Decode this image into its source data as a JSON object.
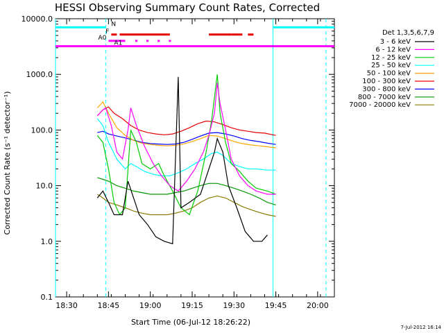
{
  "chart_data": {
    "type": "line",
    "title": "HESSI Observing Summary Count Rates, Corrected",
    "xlabel": "Start Time (06-Jul-12 18:26:22)",
    "ylabel": "Corrected Count Rate (s⁻¹ detector⁻¹)",
    "footer": "7-Jul-2012 16:14",
    "y_scale": "log",
    "ylim": [
      0.1,
      10000.0
    ],
    "xlim": [
      "18:26",
      "20:06"
    ],
    "x_ticks": [
      "18:30",
      "18:45",
      "19:00",
      "19:15",
      "19:30",
      "19:45",
      "20:00"
    ],
    "y_ticks": [
      "0.1",
      "1.0",
      "10.0",
      "100.0",
      "1000.0",
      "10000.0"
    ],
    "legend_title": "Det 1,3,5,6,7,9",
    "grid": false,
    "legend_placement": "right",
    "series": [
      {
        "name": "3 - 6 keV",
        "color": "#000000",
        "points": [
          [
            "18:41",
            6
          ],
          [
            "18:43",
            8
          ],
          [
            "18:45",
            5
          ],
          [
            "18:47",
            3
          ],
          [
            "18:50",
            3
          ],
          [
            "18:52",
            12
          ],
          [
            "18:54",
            6
          ],
          [
            "18:56",
            3
          ],
          [
            "18:59",
            2
          ],
          [
            "19:02",
            1.2
          ],
          [
            "19:05",
            1.0
          ],
          [
            "19:08",
            0.9
          ],
          [
            "19:10",
            900
          ],
          [
            "19:11",
            4
          ],
          [
            "19:14",
            5
          ],
          [
            "19:18",
            7
          ],
          [
            "19:21",
            20
          ],
          [
            "19:23",
            40
          ],
          [
            "19:24",
            70
          ],
          [
            "19:26",
            40
          ],
          [
            "19:28",
            10
          ],
          [
            "19:31",
            4
          ],
          [
            "19:34",
            1.5
          ],
          [
            "19:37",
            1.0
          ],
          [
            "19:40",
            1.0
          ],
          [
            "19:42",
            1.3
          ]
        ]
      },
      {
        "name": "6 - 12 keV",
        "color": "#ff00ff",
        "points": [
          [
            "18:41",
            180
          ],
          [
            "18:43",
            230
          ],
          [
            "18:44",
            250
          ],
          [
            "18:46",
            120
          ],
          [
            "18:48",
            40
          ],
          [
            "18:50",
            30
          ],
          [
            "18:52",
            100
          ],
          [
            "18:53",
            250
          ],
          [
            "18:55",
            120
          ],
          [
            "18:58",
            50
          ],
          [
            "19:01",
            25
          ],
          [
            "19:04",
            15
          ],
          [
            "19:07",
            10
          ],
          [
            "19:10",
            8
          ],
          [
            "19:13",
            12
          ],
          [
            "19:16",
            20
          ],
          [
            "19:19",
            40
          ],
          [
            "19:21",
            80
          ],
          [
            "19:23",
            200
          ],
          [
            "19:24",
            700
          ],
          [
            "19:25",
            300
          ],
          [
            "19:27",
            100
          ],
          [
            "19:29",
            30
          ],
          [
            "19:32",
            15
          ],
          [
            "19:35",
            10
          ],
          [
            "19:38",
            8
          ],
          [
            "19:42",
            7
          ],
          [
            "19:45",
            7
          ]
        ]
      },
      {
        "name": "12 - 25 keV",
        "color": "#00cc00",
        "points": [
          [
            "18:41",
            80
          ],
          [
            "18:43",
            60
          ],
          [
            "18:45",
            20
          ],
          [
            "18:47",
            5
          ],
          [
            "18:49",
            3
          ],
          [
            "18:51",
            4
          ],
          [
            "18:53",
            100
          ],
          [
            "18:55",
            60
          ],
          [
            "18:57",
            25
          ],
          [
            "19:00",
            20
          ],
          [
            "19:03",
            25
          ],
          [
            "19:05",
            15
          ],
          [
            "19:08",
            8
          ],
          [
            "19:11",
            4
          ],
          [
            "19:14",
            3
          ],
          [
            "19:17",
            8
          ],
          [
            "19:20",
            40
          ],
          [
            "19:22",
            150
          ],
          [
            "19:24",
            1000
          ],
          [
            "19:25",
            200
          ],
          [
            "19:27",
            60
          ],
          [
            "19:29",
            25
          ],
          [
            "19:32",
            18
          ],
          [
            "19:35",
            12
          ],
          [
            "19:38",
            9
          ],
          [
            "19:42",
            8
          ],
          [
            "19:45",
            7
          ]
        ]
      },
      {
        "name": "25 - 50 keV",
        "color": "#00ffff",
        "points": [
          [
            "18:41",
            160
          ],
          [
            "18:43",
            120
          ],
          [
            "18:45",
            60
          ],
          [
            "18:48",
            30
          ],
          [
            "18:51",
            20
          ],
          [
            "18:53",
            25
          ],
          [
            "18:55",
            22
          ],
          [
            "18:58",
            18
          ],
          [
            "19:01",
            16
          ],
          [
            "19:04",
            15
          ],
          [
            "19:07",
            15
          ],
          [
            "19:10",
            17
          ],
          [
            "19:13",
            20
          ],
          [
            "19:16",
            25
          ],
          [
            "19:19",
            30
          ],
          [
            "19:22",
            38
          ],
          [
            "19:24",
            40
          ],
          [
            "19:26",
            35
          ],
          [
            "19:29",
            25
          ],
          [
            "19:32",
            22
          ],
          [
            "19:35",
            20
          ],
          [
            "19:38",
            20
          ],
          [
            "19:42",
            19
          ],
          [
            "19:45",
            19
          ]
        ]
      },
      {
        "name": "50 - 100 keV",
        "color": "#ffa500",
        "points": [
          [
            "18:41",
            250
          ],
          [
            "18:43",
            320
          ],
          [
            "18:45",
            200
          ],
          [
            "18:48",
            110
          ],
          [
            "18:51",
            80
          ],
          [
            "18:54",
            65
          ],
          [
            "18:57",
            58
          ],
          [
            "19:00",
            55
          ],
          [
            "19:03",
            53
          ],
          [
            "19:06",
            52
          ],
          [
            "19:09",
            53
          ],
          [
            "19:12",
            56
          ],
          [
            "19:15",
            62
          ],
          [
            "19:18",
            70
          ],
          [
            "19:21",
            80
          ],
          [
            "19:24",
            78
          ],
          [
            "19:27",
            70
          ],
          [
            "19:30",
            62
          ],
          [
            "19:33",
            57
          ],
          [
            "19:36",
            54
          ],
          [
            "19:39",
            52
          ],
          [
            "19:42",
            50
          ],
          [
            "19:45",
            48
          ]
        ]
      },
      {
        "name": "100 - 300 keV",
        "color": "#e80000",
        "points": [
          [
            "18:41",
            180
          ],
          [
            "18:43",
            230
          ],
          [
            "18:45",
            260
          ],
          [
            "18:47",
            200
          ],
          [
            "18:50",
            160
          ],
          [
            "18:53",
            120
          ],
          [
            "18:56",
            100
          ],
          [
            "18:59",
            90
          ],
          [
            "19:02",
            85
          ],
          [
            "19:05",
            82
          ],
          [
            "19:08",
            85
          ],
          [
            "19:11",
            95
          ],
          [
            "19:14",
            110
          ],
          [
            "19:17",
            130
          ],
          [
            "19:20",
            145
          ],
          [
            "19:23",
            140
          ],
          [
            "19:26",
            125
          ],
          [
            "19:29",
            110
          ],
          [
            "19:32",
            100
          ],
          [
            "19:35",
            95
          ],
          [
            "19:38",
            90
          ],
          [
            "19:41",
            88
          ],
          [
            "19:45",
            80
          ]
        ]
      },
      {
        "name": "300 - 800 keV",
        "color": "#0000ff",
        "points": [
          [
            "18:41",
            90
          ],
          [
            "18:43",
            95
          ],
          [
            "18:45",
            85
          ],
          [
            "18:48",
            78
          ],
          [
            "18:51",
            72
          ],
          [
            "18:54",
            66
          ],
          [
            "18:57",
            60
          ],
          [
            "19:00",
            57
          ],
          [
            "19:03",
            56
          ],
          [
            "19:06",
            55
          ],
          [
            "19:09",
            56
          ],
          [
            "19:12",
            60
          ],
          [
            "19:15",
            68
          ],
          [
            "19:18",
            78
          ],
          [
            "19:21",
            88
          ],
          [
            "19:24",
            90
          ],
          [
            "19:27",
            85
          ],
          [
            "19:30",
            78
          ],
          [
            "19:33",
            70
          ],
          [
            "19:36",
            65
          ],
          [
            "19:39",
            62
          ],
          [
            "19:42",
            58
          ],
          [
            "19:45",
            55
          ]
        ]
      },
      {
        "name": "800 - 7000 keV",
        "color": "#009900",
        "points": [
          [
            "18:41",
            14
          ],
          [
            "18:43",
            13
          ],
          [
            "18:45",
            12
          ],
          [
            "18:48",
            10
          ],
          [
            "18:51",
            9
          ],
          [
            "18:54",
            8
          ],
          [
            "18:57",
            7.5
          ],
          [
            "19:00",
            7
          ],
          [
            "19:03",
            7
          ],
          [
            "19:06",
            7
          ],
          [
            "19:09",
            7.5
          ],
          [
            "19:12",
            8
          ],
          [
            "19:15",
            9
          ],
          [
            "19:18",
            10
          ],
          [
            "19:21",
            11
          ],
          [
            "19:24",
            11
          ],
          [
            "19:27",
            10
          ],
          [
            "19:30",
            9
          ],
          [
            "19:33",
            8
          ],
          [
            "19:36",
            7
          ],
          [
            "19:39",
            6
          ],
          [
            "19:42",
            5
          ],
          [
            "19:45",
            4.5
          ]
        ]
      },
      {
        "name": "7000 - 20000 keV",
        "color": "#8b7a00",
        "points": [
          [
            "18:41",
            7
          ],
          [
            "18:43",
            6
          ],
          [
            "18:45",
            5
          ],
          [
            "18:48",
            4.5
          ],
          [
            "18:51",
            4
          ],
          [
            "18:54",
            3.5
          ],
          [
            "18:57",
            3.2
          ],
          [
            "19:00",
            3.0
          ],
          [
            "19:03",
            3.0
          ],
          [
            "19:06",
            3.0
          ],
          [
            "19:09",
            3.2
          ],
          [
            "19:12",
            3.5
          ],
          [
            "19:15",
            4.0
          ],
          [
            "19:18",
            5.0
          ],
          [
            "19:21",
            6.0
          ],
          [
            "19:24",
            6.5
          ],
          [
            "19:27",
            6.0
          ],
          [
            "19:30",
            5.0
          ],
          [
            "19:33",
            4.2
          ],
          [
            "19:36",
            3.7
          ],
          [
            "19:39",
            3.3
          ],
          [
            "19:42",
            3.0
          ],
          [
            "19:45",
            2.8
          ]
        ]
      }
    ],
    "flags": [
      {
        "label": "N",
        "color": "#00ffff",
        "segments": [
          [
            "18:26",
            "18:44"
          ],
          [
            "19:44",
            "20:06"
          ]
        ],
        "level": 7000
      },
      {
        "label": "F",
        "color": "#e80000",
        "segments": [
          [
            "18:46",
            "18:48"
          ],
          [
            "18:49",
            "19:07"
          ],
          [
            "19:21",
            "19:29"
          ],
          [
            "19:29",
            "19:33"
          ],
          [
            "19:35",
            "19:37"
          ]
        ],
        "level": 5200
      },
      {
        "label": "A0",
        "color": "#ff00ff",
        "segments": [
          [
            "18:45",
            "18:51"
          ]
        ],
        "level": 4000
      },
      {
        "label": "A1",
        "color": "#ff00ff",
        "segments": [
          [
            "18:26",
            "20:06"
          ]
        ],
        "level": 3200
      }
    ],
    "a0_dots": [
      "18:55",
      "18:59",
      "19:03",
      "19:07"
    ],
    "vlines_solid": [
      "18:26",
      "19:44"
    ],
    "vlines_dashed": [
      "18:44",
      "20:03"
    ],
    "vline_color": "#00ffff"
  }
}
